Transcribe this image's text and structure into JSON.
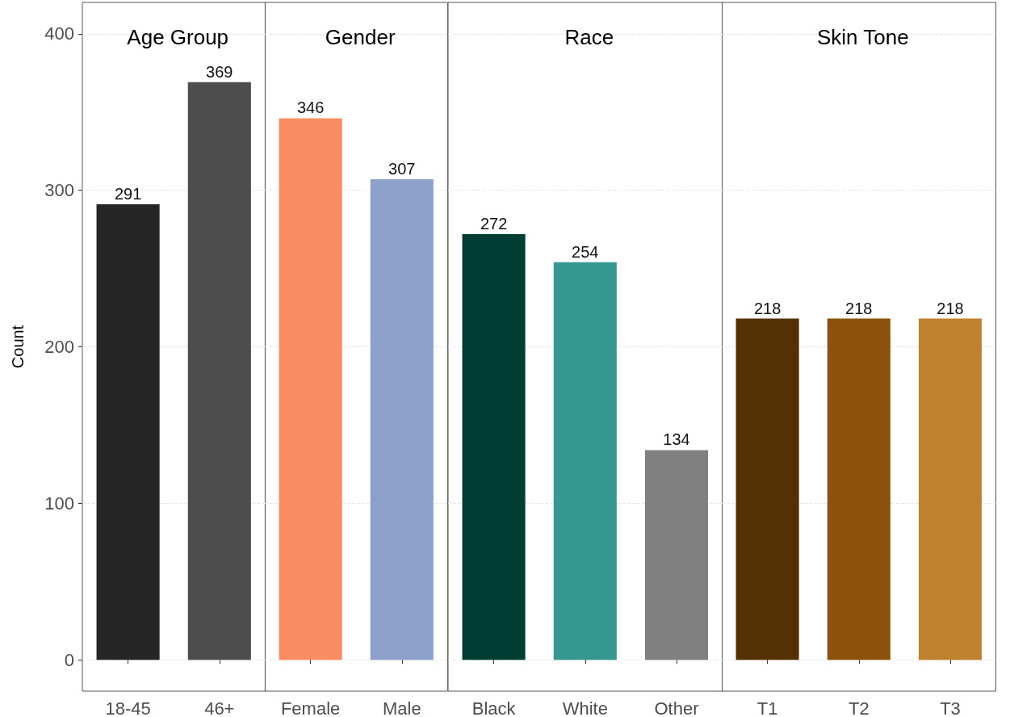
{
  "chart_data": [
    {
      "type": "bar",
      "title": "Age Group",
      "ylabel": "Count",
      "categories": [
        "18-45",
        "46+"
      ],
      "values": [
        291,
        369
      ],
      "colors": [
        "#262626",
        "#4d4d4d"
      ],
      "data_labels": true,
      "ylim": [
        -20,
        420
      ],
      "yticks": [
        0,
        100,
        200,
        300,
        400
      ],
      "grid": "y"
    },
    {
      "type": "bar",
      "title": "Gender",
      "categories": [
        "Female",
        "Male"
      ],
      "values": [
        346,
        307
      ],
      "colors": [
        "#fc8d62",
        "#8da0cb"
      ],
      "data_labels": true,
      "ylim": [
        -20,
        420
      ],
      "yticks": [
        0,
        100,
        200,
        300,
        400
      ],
      "grid": "y",
      "tick_labels": "x"
    },
    {
      "type": "bar",
      "title": "Race",
      "categories": [
        "Black",
        "White",
        "Other"
      ],
      "values": [
        272,
        254,
        134
      ],
      "colors": [
        "#003d33",
        "#35978f",
        "#808080"
      ],
      "data_labels": true,
      "ylim": [
        -20,
        420
      ],
      "yticks": [
        0,
        100,
        200,
        300,
        400
      ],
      "grid": "y",
      "tick_labels": "x"
    },
    {
      "type": "bar",
      "title": "Skin Tone",
      "categories": [
        "T1",
        "T2",
        "T3"
      ],
      "values": [
        218,
        218,
        218
      ],
      "colors": [
        "#543005",
        "#8c510a",
        "#bf812d"
      ],
      "data_labels": true,
      "ylim": [
        -20,
        420
      ],
      "yticks": [
        0,
        100,
        200,
        300,
        400
      ],
      "grid": "y",
      "tick_labels": "x"
    }
  ]
}
